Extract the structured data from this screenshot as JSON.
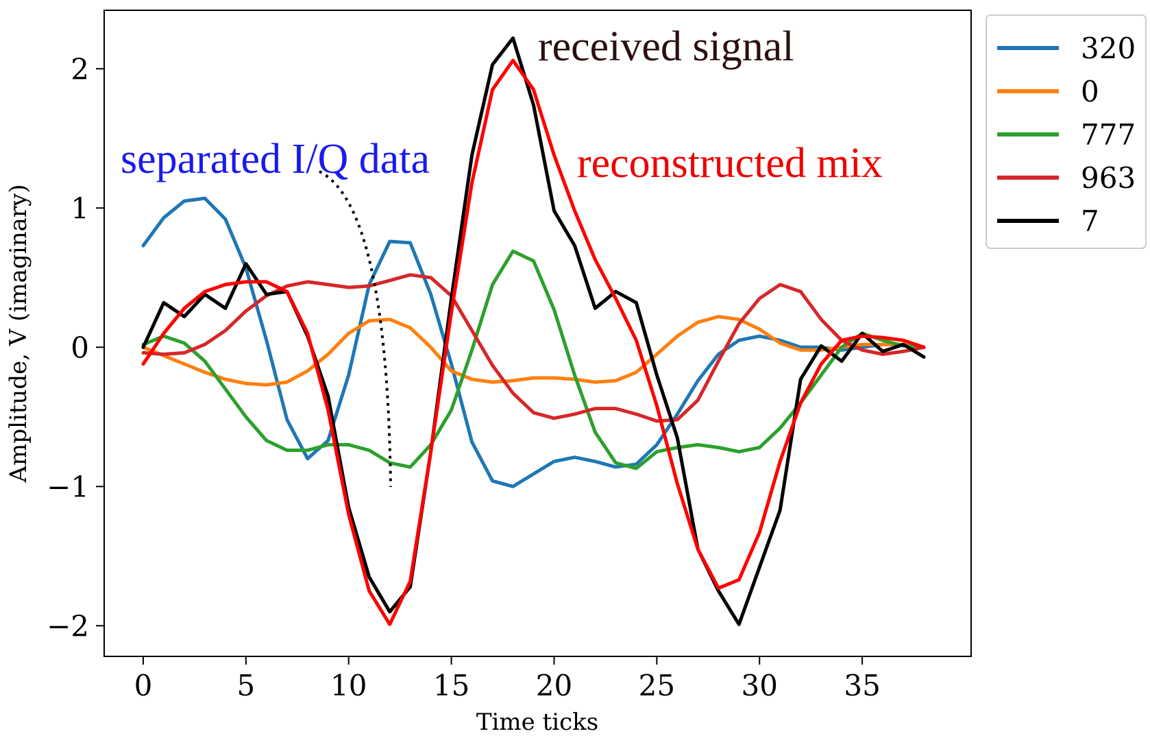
{
  "chart_data": {
    "type": "line",
    "xlabel": "Time ticks",
    "ylabel": "Amplitude, V (imaginary)",
    "xlim": [
      -1.9,
      40.3
    ],
    "ylim": [
      -2.22,
      2.42
    ],
    "xticks": [
      0,
      5,
      10,
      15,
      20,
      25,
      30,
      35
    ],
    "xtick_labels": [
      "0",
      "5",
      "10",
      "15",
      "20",
      "25",
      "30",
      "35"
    ],
    "yticks": [
      2,
      1,
      0,
      -1,
      -2
    ],
    "ytick_labels": [
      "2",
      "1",
      "0",
      "−1",
      "−2"
    ],
    "grid": false,
    "legend_position": "outside-top-right",
    "x": [
      0,
      1,
      2,
      3,
      4,
      5,
      6,
      7,
      8,
      9,
      10,
      11,
      12,
      13,
      14,
      15,
      16,
      17,
      18,
      19,
      20,
      21,
      22,
      23,
      24,
      25,
      26,
      27,
      28,
      29,
      30,
      31,
      32,
      33,
      34,
      35,
      36,
      37,
      38
    ],
    "series": [
      {
        "name": "320",
        "color": "#1f77b4",
        "values": [
          0.73,
          0.93,
          1.05,
          1.07,
          0.92,
          0.57,
          0.05,
          -0.52,
          -0.8,
          -0.67,
          -0.2,
          0.45,
          0.76,
          0.75,
          0.38,
          -0.12,
          -0.68,
          -0.96,
          -1.0,
          -0.91,
          -0.82,
          -0.79,
          -0.82,
          -0.86,
          -0.84,
          -0.7,
          -0.48,
          -0.24,
          -0.05,
          0.05,
          0.08,
          0.05,
          0.0,
          0.0,
          -0.02,
          0.0,
          0.02,
          0.02,
          0.0
        ]
      },
      {
        "name": "0",
        "color": "#ff7f0e",
        "values": [
          0.0,
          -0.06,
          -0.12,
          -0.18,
          -0.23,
          -0.26,
          -0.27,
          -0.25,
          -0.17,
          -0.05,
          0.1,
          0.19,
          0.2,
          0.14,
          0.0,
          -0.17,
          -0.23,
          -0.25,
          -0.24,
          -0.22,
          -0.22,
          -0.23,
          -0.25,
          -0.24,
          -0.18,
          -0.05,
          0.08,
          0.18,
          0.22,
          0.2,
          0.13,
          0.03,
          -0.02,
          -0.02,
          0.0,
          0.02,
          0.02,
          0.02,
          0.0
        ]
      },
      {
        "name": "777",
        "color": "#2ca02c",
        "values": [
          0.02,
          0.08,
          0.03,
          -0.1,
          -0.3,
          -0.5,
          -0.67,
          -0.74,
          -0.74,
          -0.7,
          -0.7,
          -0.74,
          -0.83,
          -0.86,
          -0.7,
          -0.45,
          -0.02,
          0.45,
          0.69,
          0.62,
          0.27,
          -0.2,
          -0.61,
          -0.83,
          -0.87,
          -0.75,
          -0.72,
          -0.7,
          -0.72,
          -0.75,
          -0.72,
          -0.58,
          -0.4,
          -0.2,
          0.0,
          0.1,
          0.05,
          0.01,
          0.0
        ]
      },
      {
        "name": "963",
        "color": "#d62728",
        "values": [
          -0.04,
          -0.05,
          -0.04,
          0.02,
          0.12,
          0.26,
          0.37,
          0.44,
          0.47,
          0.45,
          0.43,
          0.44,
          0.48,
          0.52,
          0.5,
          0.37,
          0.12,
          -0.13,
          -0.33,
          -0.47,
          -0.51,
          -0.48,
          -0.44,
          -0.44,
          -0.48,
          -0.53,
          -0.52,
          -0.38,
          -0.1,
          0.17,
          0.35,
          0.45,
          0.4,
          0.2,
          0.05,
          -0.02,
          -0.05,
          -0.03,
          0.0
        ]
      },
      {
        "name": "7",
        "color": "#000000",
        "values": [
          0.0,
          0.32,
          0.22,
          0.38,
          0.28,
          0.6,
          0.38,
          0.4,
          0.08,
          -0.35,
          -1.15,
          -1.65,
          -1.9,
          -1.72,
          -0.75,
          0.35,
          1.38,
          2.03,
          2.22,
          1.74,
          0.98,
          0.73,
          0.28,
          0.4,
          0.32,
          -0.2,
          -0.65,
          -1.45,
          -1.75,
          -1.99,
          -1.58,
          -1.17,
          -0.23,
          0.01,
          -0.1,
          0.1,
          -0.03,
          0.02,
          -0.07
        ]
      },
      {
        "color": "#ff0000",
        "values": [
          -0.12,
          0.1,
          0.28,
          0.4,
          0.45,
          0.47,
          0.47,
          0.4,
          0.1,
          -0.45,
          -1.2,
          -1.75,
          -1.99,
          -1.68,
          -0.75,
          0.25,
          1.18,
          1.85,
          2.06,
          1.85,
          1.38,
          0.98,
          0.63,
          0.35,
          0.05,
          -0.42,
          -0.98,
          -1.45,
          -1.73,
          -1.67,
          -1.33,
          -0.82,
          -0.4,
          -0.12,
          0.05,
          0.08,
          0.07,
          0.05,
          0.0
        ]
      }
    ],
    "annotations": [
      {
        "text": "received signal",
        "color": "#2b0f0f"
      },
      {
        "text": "reconstructed mix",
        "color": "#ee0000"
      },
      {
        "text": "separated I/Q data",
        "color": "#1a1aee"
      }
    ]
  }
}
